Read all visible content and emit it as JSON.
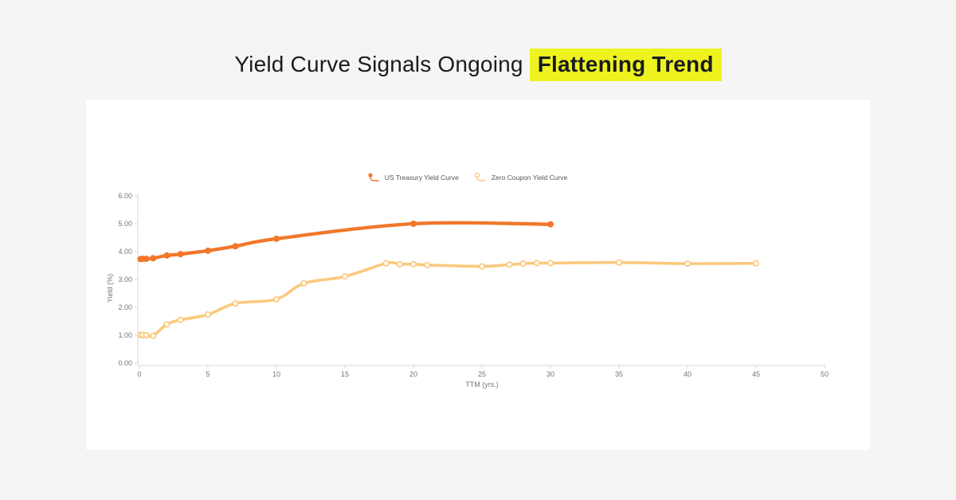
{
  "page": {
    "background_color": "#f5f5f6",
    "card_color": "#ffffff"
  },
  "title": {
    "regular": "Yield Curve Signals Ongoing",
    "highlighted": "Flattening Trend",
    "highlight_color": "#eef31f",
    "text_color": "#1a1c1f"
  },
  "chart_data": {
    "type": "line",
    "xlabel": "TTM (yrs.)",
    "ylabel": "Yield (%)",
    "xlim": [
      0,
      50
    ],
    "ylim": [
      0,
      6
    ],
    "x_ticks": [
      0,
      5,
      10,
      15,
      20,
      25,
      30,
      35,
      40,
      45,
      50
    ],
    "y_tick_labels": [
      "0.00",
      "1.00",
      "2.00",
      "3.00",
      "4.00",
      "5.00",
      "6.00"
    ],
    "grid": false,
    "legend_position": "top-center",
    "axis_color": "#d9d9d9",
    "tick_label_color": "#757575",
    "series": [
      {
        "name": "US Treasury Yield Curve",
        "color": "#f2772a",
        "marker": "filled-circle",
        "x": [
          0.083,
          0.25,
          0.5,
          1,
          2,
          3,
          5,
          7,
          10,
          20,
          30
        ],
        "y": [
          3.73,
          3.74,
          3.74,
          3.76,
          3.86,
          3.91,
          4.03,
          4.19,
          4.46,
          5.0,
          4.98
        ]
      },
      {
        "name": "Zero Coupon Yield Curve",
        "color": "#fbc97e",
        "marker": "open-circle",
        "x": [
          0.083,
          0.25,
          0.5,
          1,
          2,
          3,
          5,
          7,
          10,
          12,
          15,
          18,
          19,
          20,
          21,
          25,
          27,
          28,
          29,
          30,
          35,
          40,
          45
        ],
        "y": [
          1.01,
          1.0,
          1.0,
          0.98,
          1.39,
          1.55,
          1.74,
          2.14,
          2.29,
          2.86,
          3.11,
          3.58,
          3.55,
          3.55,
          3.52,
          3.47,
          3.53,
          3.57,
          3.59,
          3.59,
          3.61,
          3.57,
          3.58
        ]
      }
    ]
  }
}
